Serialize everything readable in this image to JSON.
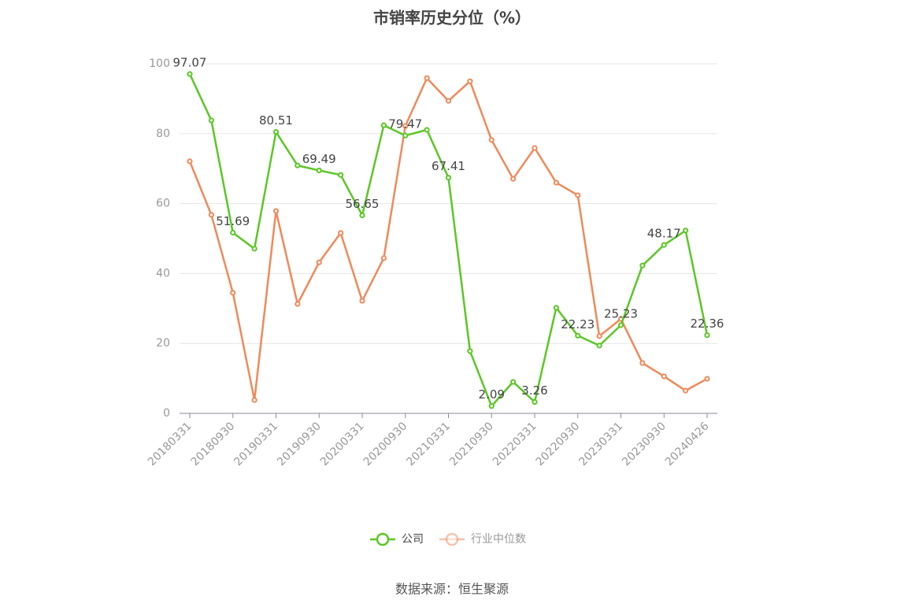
{
  "chart_data": {
    "type": "line",
    "title": "市销率历史分位（%）",
    "source": "数据来源：恒生聚源",
    "categories": [
      "20180331",
      null,
      "20180930",
      null,
      "20190331",
      null,
      "20190930",
      null,
      "20200331",
      null,
      "20200930",
      null,
      "20210331",
      null,
      "20210930",
      null,
      "20220331",
      null,
      "20220930",
      null,
      "20230331",
      null,
      "20230930",
      null,
      "20240426"
    ],
    "series": [
      {
        "name": "公司",
        "color": "#5ac725",
        "values": [
          97.07,
          83.8,
          51.69,
          47.1,
          80.51,
          70.9,
          69.49,
          68.2,
          56.65,
          82.4,
          79.47,
          81.1,
          67.41,
          17.8,
          2.09,
          9.0,
          3.26,
          30.2,
          22.23,
          19.4,
          25.23,
          42.3,
          48.17,
          52.3,
          22.36
        ],
        "value_labels": [
          "97.07",
          null,
          "51.69",
          null,
          "80.51",
          null,
          "69.49",
          null,
          "56.65",
          null,
          "79.47",
          null,
          "67.41",
          null,
          "2.09",
          null,
          "3.26",
          null,
          "22.23",
          null,
          "25.23",
          null,
          "48.17",
          null,
          "22.36"
        ]
      },
      {
        "name": "行业中位数",
        "color": "#f0895a",
        "values": [
          72.1,
          56.8,
          34.5,
          3.8,
          57.9,
          31.3,
          43.2,
          51.6,
          32.2,
          44.4,
          82.2,
          95.9,
          89.4,
          95.0,
          78.2,
          67.1,
          75.9,
          66.0,
          62.4,
          22.1,
          27.0,
          14.4,
          10.6,
          6.5,
          9.9
        ]
      }
    ],
    "ylim": [
      0,
      100
    ],
    "yticks": [
      0,
      20,
      40,
      60,
      80,
      100
    ],
    "grid": true
  }
}
